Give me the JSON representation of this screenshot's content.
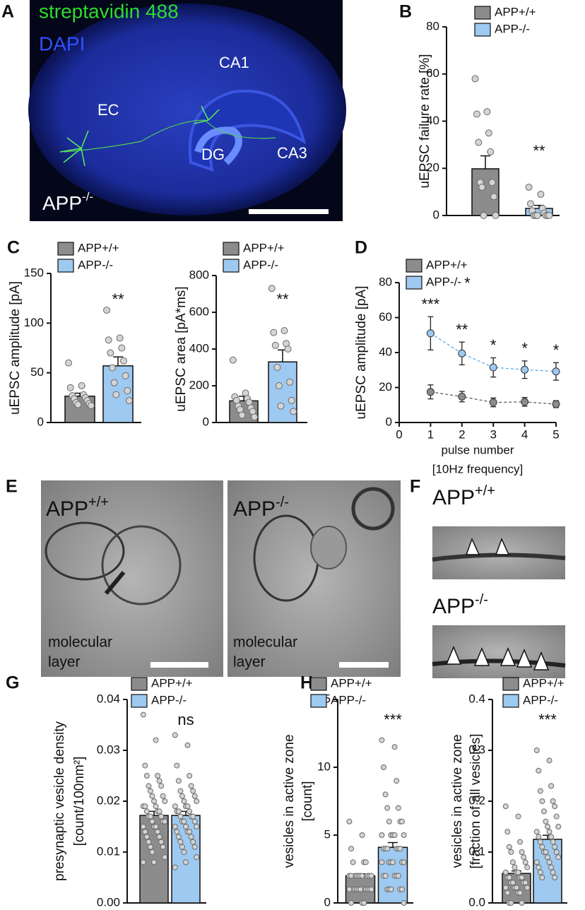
{
  "images": {
    "panel_A": {
      "letter": "A",
      "stain1": "streptavidin 488",
      "stain2": "DAPI",
      "ca1": "CA1",
      "ec": "EC",
      "dg": "DG",
      "ca3": "CA3",
      "genotype": [
        "APP",
        "-/-"
      ]
    },
    "panel_E": {
      "letter": "E",
      "left": {
        "genotype": [
          "APP",
          "+/+"
        ],
        "region": [
          "molecular",
          "layer"
        ]
      },
      "right": {
        "genotype": [
          "APP",
          "-/-"
        ],
        "region": [
          "molecular",
          "layer"
        ]
      }
    },
    "panel_F": {
      "letter": "F",
      "top": [
        "APP",
        "+/+"
      ],
      "bottom": [
        "APP",
        "-/-"
      ]
    }
  },
  "chart_data": [
    {
      "type": "bar",
      "panel": "B",
      "ylabel": [
        "uEPSC failure rate [%]"
      ],
      "ylim": [
        0,
        80
      ],
      "yticks": [
        0,
        20,
        40,
        60,
        80
      ],
      "annotation": "**",
      "series": [
        {
          "name": "APP+/+",
          "color": "#8c8c8c",
          "values": [
            19.8
          ],
          "errors": [
            5.5
          ],
          "points": [
            58,
            44,
            43,
            35,
            31,
            27,
            14,
            14,
            12,
            8,
            0,
            0
          ]
        },
        {
          "name": "APP-/-",
          "color": "#9ec9f0",
          "values": [
            3
          ],
          "errors": [
            1.3
          ],
          "points": [
            12,
            9,
            5,
            3,
            2,
            1,
            0,
            0,
            0,
            0,
            0,
            0
          ]
        }
      ]
    },
    {
      "type": "bar",
      "panel": "C",
      "ylabel": [
        "uEPSC amplitude [pA]"
      ],
      "ylim": [
        0,
        150
      ],
      "yticks": [
        0,
        50,
        100,
        150
      ],
      "annotation": "**",
      "series": [
        {
          "name": "APP+/+",
          "color": "#8c8c8c",
          "values": [
            26.5
          ],
          "errors": [
            3
          ],
          "points": [
            60,
            37,
            35,
            28,
            27,
            25,
            24,
            22,
            20,
            19,
            18,
            17
          ]
        },
        {
          "name": "APP-/-",
          "color": "#9ec9f0",
          "values": [
            57
          ],
          "errors": [
            9
          ],
          "points": [
            113,
            85,
            83,
            75,
            70,
            62,
            55,
            47,
            40,
            32,
            28,
            22
          ]
        }
      ]
    },
    {
      "type": "bar",
      "ylabel": [
        "uEPSC area [pA*ms]"
      ],
      "ylim": [
        0,
        800
      ],
      "yticks": [
        0,
        200,
        400,
        600,
        800
      ],
      "annotation": "**",
      "series": [
        {
          "name": "APP+/+",
          "color": "#8c8c8c",
          "values": [
            118
          ],
          "errors": [
            25
          ],
          "points": [
            340,
            160,
            140,
            130,
            120,
            110,
            90,
            80,
            70,
            60,
            40,
            30
          ]
        },
        {
          "name": "APP-/-",
          "color": "#9ec9f0",
          "values": [
            330
          ],
          "errors": [
            65
          ],
          "points": [
            730,
            500,
            490,
            430,
            420,
            400,
            300,
            220,
            200,
            120,
            90,
            60
          ]
        }
      ]
    },
    {
      "type": "line",
      "panel": "D",
      "ylabel": [
        "uEPSC amplitude [pA]"
      ],
      "xlabel": [
        "pulse number",
        "[10Hz frequency]"
      ],
      "x": [
        1,
        2,
        3,
        4,
        5
      ],
      "xlim": [
        0,
        5
      ],
      "xticks": [
        0,
        1,
        2,
        3,
        4,
        5
      ],
      "ylim": [
        0,
        80
      ],
      "yticks": [
        0,
        20,
        40,
        60,
        80
      ],
      "annotations": [
        "***",
        "**",
        "*",
        "*",
        "*"
      ],
      "legend_annotation": "*",
      "series": [
        {
          "name": "APP+/+",
          "color": "#8c8c8c",
          "values": [
            17.5,
            14.8,
            11.5,
            11.8,
            10.5
          ],
          "errors": [
            4,
            3,
            2.5,
            2.5,
            2
          ]
        },
        {
          "name": "APP-/-",
          "color": "#9ec9f0",
          "values": [
            51,
            39.5,
            31.5,
            30.2,
            29.2
          ],
          "errors": [
            9.5,
            6.5,
            5.5,
            5,
            5
          ]
        }
      ]
    },
    {
      "type": "bar",
      "panel": "G",
      "ylabel": [
        "presynaptic vesicle density",
        "[count/100nm²]"
      ],
      "ylim": [
        0,
        0.04
      ],
      "yticks": [
        {
          "value": 0,
          "label": "0.00"
        },
        {
          "value": 0.01,
          "label": "0.01"
        },
        {
          "value": 0.02,
          "label": "0.02"
        },
        {
          "value": 0.03,
          "label": "0.03"
        },
        {
          "value": 0.04,
          "label": "0.04"
        }
      ],
      "annotation": "ns",
      "series": [
        {
          "name": "APP+/+",
          "color": "#8c8c8c",
          "values": [
            0.0172
          ],
          "errors": [
            0.0008
          ],
          "points": [
            0.037,
            0.032,
            0.027,
            0.025,
            0.025,
            0.024,
            0.023,
            0.023,
            0.022,
            0.021,
            0.021,
            0.02,
            0.02,
            0.019,
            0.019,
            0.019,
            0.018,
            0.018,
            0.018,
            0.017,
            0.017,
            0.017,
            0.016,
            0.016,
            0.016,
            0.015,
            0.015,
            0.015,
            0.014,
            0.014,
            0.013,
            0.013,
            0.012,
            0.012,
            0.011,
            0.011,
            0.01,
            0.009,
            0.008,
            0.008
          ]
        },
        {
          "name": "APP-/-",
          "color": "#9ec9f0",
          "values": [
            0.0172
          ],
          "errors": [
            0.0008
          ],
          "points": [
            0.033,
            0.031,
            0.027,
            0.025,
            0.024,
            0.023,
            0.022,
            0.022,
            0.021,
            0.021,
            0.02,
            0.02,
            0.019,
            0.019,
            0.019,
            0.018,
            0.018,
            0.018,
            0.017,
            0.017,
            0.017,
            0.016,
            0.016,
            0.016,
            0.015,
            0.015,
            0.015,
            0.014,
            0.014,
            0.014,
            0.013,
            0.013,
            0.012,
            0.012,
            0.011,
            0.011,
            0.01,
            0.009,
            0.008,
            0.007
          ]
        }
      ]
    },
    {
      "type": "bar",
      "panel": "H",
      "ylabel": [
        "vesicles in active zone",
        "[count]"
      ],
      "ylim": [
        0,
        15
      ],
      "yticks": [
        0,
        5,
        10,
        15
      ],
      "annotation": "***",
      "series": [
        {
          "name": "APP+/+",
          "color": "#8c8c8c",
          "values": [
            2.0
          ],
          "errors": [
            0.15
          ],
          "points": [
            6,
            5,
            4,
            3,
            3,
            3,
            2,
            2,
            2,
            2,
            2,
            2,
            2,
            2,
            2,
            2,
            1,
            1,
            1,
            1,
            1,
            1,
            1,
            1,
            1,
            1,
            1,
            0,
            0,
            0
          ]
        },
        {
          "name": "APP-/-",
          "color": "#9ec9f0",
          "values": [
            4.1
          ],
          "errors": [
            0.35
          ],
          "points": [
            12,
            11.5,
            10,
            9,
            8,
            7,
            7,
            6,
            6,
            6,
            5,
            5,
            5,
            5,
            5,
            4,
            4,
            4,
            4,
            4,
            4,
            3,
            3,
            3,
            3,
            3,
            3,
            2,
            2,
            2,
            2,
            2,
            1,
            1,
            1,
            1,
            1,
            0
          ]
        }
      ]
    },
    {
      "type": "bar",
      "ylabel": [
        "vesicles in active zone",
        "[fraction of all vesicles]"
      ],
      "ylim": [
        0,
        0.4
      ],
      "yticks": [
        {
          "value": 0,
          "label": "0.0"
        },
        0.1,
        0.2,
        0.3,
        0.4
      ],
      "annotation": "***",
      "series": [
        {
          "name": "APP+/+",
          "color": "#8c8c8c",
          "values": [
            0.058
          ],
          "errors": [
            0.005
          ],
          "points": [
            0.19,
            0.17,
            0.14,
            0.12,
            0.11,
            0.1,
            0.1,
            0.09,
            0.08,
            0.08,
            0.07,
            0.07,
            0.06,
            0.06,
            0.06,
            0.05,
            0.05,
            0.05,
            0.05,
            0.04,
            0.04,
            0.04,
            0.04,
            0.03,
            0.03,
            0.03,
            0.03,
            0.02,
            0.02,
            0.02,
            0,
            0,
            0
          ]
        },
        {
          "name": "APP-/-",
          "color": "#9ec9f0",
          "values": [
            0.125
          ],
          "errors": [
            0.008
          ],
          "points": [
            0.3,
            0.28,
            0.26,
            0.23,
            0.22,
            0.2,
            0.2,
            0.19,
            0.18,
            0.17,
            0.16,
            0.15,
            0.15,
            0.14,
            0.14,
            0.13,
            0.13,
            0.12,
            0.12,
            0.11,
            0.11,
            0.1,
            0.1,
            0.1,
            0.09,
            0.09,
            0.08,
            0.08,
            0.07,
            0.07,
            0.06,
            0.06,
            0.05,
            0.05
          ]
        }
      ]
    }
  ]
}
